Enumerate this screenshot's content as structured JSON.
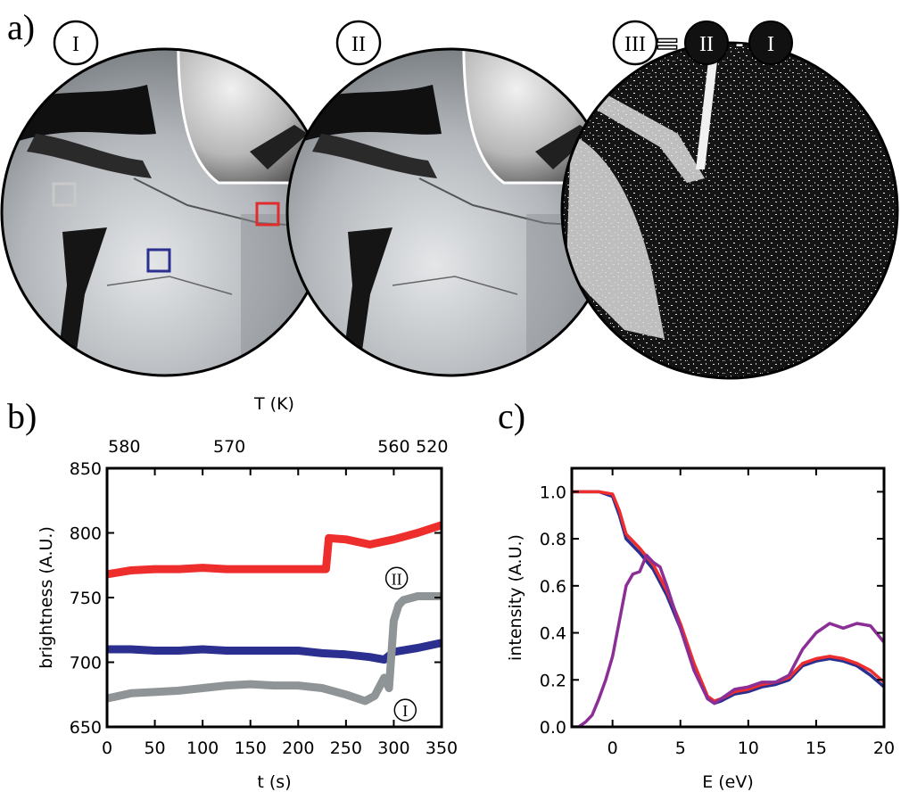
{
  "panel_labels": {
    "a": "a)",
    "b": "b)",
    "c": "c)"
  },
  "images": {
    "labels": [
      "I",
      "II",
      "III"
    ],
    "equation": {
      "lhs": "III",
      "eq": "=",
      "a": "II",
      "minus": "-",
      "b": "I"
    },
    "roi_colors": {
      "gray": "#c8c8c8",
      "blue": "#2b2f8f",
      "red": "#e02c2c"
    }
  },
  "chart_data": [
    {
      "type": "line",
      "title": "",
      "xlabel": "t (s)",
      "ylabel": "brightness (A.U.)",
      "top_xlabel": "T (K)",
      "xlim": [
        0,
        350
      ],
      "ylim": [
        650,
        850
      ],
      "xticks": [
        0,
        50,
        100,
        150,
        200,
        250,
        300,
        350
      ],
      "yticks": [
        650,
        700,
        750,
        800,
        850
      ],
      "top_ticks": [
        {
          "label": "580",
          "at_t": 18
        },
        {
          "label": "570",
          "at_t": 128
        },
        {
          "label": "560",
          "at_t": 300
        },
        {
          "label": "520",
          "at_t": 340
        }
      ],
      "annotations": [
        {
          "text": "II",
          "x": 303,
          "y": 765
        },
        {
          "text": "I",
          "x": 312,
          "y": 663
        }
      ],
      "series": [
        {
          "color": "#ee2d2d",
          "x": [
            0,
            25,
            50,
            75,
            100,
            125,
            150,
            175,
            200,
            225,
            229,
            232,
            250,
            275,
            300,
            325,
            350
          ],
          "y": [
            768,
            771,
            772,
            772,
            773,
            772,
            772,
            772,
            772,
            772,
            772,
            796,
            795,
            791,
            795,
            800,
            806
          ]
        },
        {
          "color": "#2b2f8f",
          "x": [
            0,
            25,
            50,
            75,
            100,
            125,
            150,
            175,
            200,
            225,
            250,
            275,
            290,
            300,
            325,
            350
          ],
          "y": [
            710,
            710,
            709,
            709,
            710,
            709,
            709,
            709,
            709,
            707,
            706,
            704,
            702,
            708,
            711,
            715
          ]
        },
        {
          "color": "#8f9497",
          "x": [
            0,
            25,
            50,
            75,
            100,
            125,
            150,
            175,
            200,
            225,
            250,
            270,
            280,
            290,
            295,
            300,
            305,
            310,
            325,
            350
          ],
          "y": [
            672,
            676,
            677,
            678,
            680,
            682,
            683,
            682,
            682,
            680,
            675,
            670,
            674,
            688,
            680,
            732,
            744,
            748,
            751,
            751
          ]
        }
      ]
    },
    {
      "type": "line",
      "title": "",
      "xlabel": "E (eV)",
      "ylabel": "intensity (A.U.)",
      "xlim": [
        -3,
        20
      ],
      "ylim": [
        0,
        1.1
      ],
      "xticks": [
        0,
        5,
        10,
        15,
        20
      ],
      "yticks": [
        0.0,
        0.2,
        0.4,
        0.6,
        0.8,
        1.0
      ],
      "series": [
        {
          "color": "#2b2f8f",
          "x": [
            -3,
            -1,
            0,
            0.5,
            1,
            2,
            3,
            4,
            5,
            6,
            7,
            7.5,
            8,
            9,
            10,
            11,
            12,
            13,
            14,
            15,
            16,
            17,
            18,
            19,
            20
          ],
          "y": [
            1.0,
            1.0,
            0.98,
            0.9,
            0.8,
            0.74,
            0.67,
            0.56,
            0.42,
            0.25,
            0.12,
            0.1,
            0.11,
            0.14,
            0.15,
            0.17,
            0.18,
            0.2,
            0.26,
            0.28,
            0.29,
            0.28,
            0.26,
            0.22,
            0.17
          ]
        },
        {
          "color": "#ee2d2d",
          "x": [
            -3,
            -1,
            0,
            0.5,
            1,
            2,
            3,
            4,
            5,
            6,
            7,
            7.5,
            8,
            9,
            10,
            11,
            12,
            13,
            14,
            15,
            16,
            17,
            18,
            19,
            20
          ],
          "y": [
            1.0,
            1.0,
            0.99,
            0.92,
            0.82,
            0.76,
            0.69,
            0.58,
            0.44,
            0.27,
            0.13,
            0.11,
            0.12,
            0.15,
            0.16,
            0.18,
            0.19,
            0.21,
            0.27,
            0.29,
            0.3,
            0.29,
            0.27,
            0.24,
            0.19
          ]
        },
        {
          "color": "#8b2f97",
          "x": [
            -3,
            -2.5,
            -2,
            -1.5,
            -1,
            -0.5,
            0,
            0.5,
            1,
            1.5,
            2,
            2.5,
            3,
            3.5,
            4,
            5,
            6,
            7,
            7.5,
            8,
            9,
            10,
            11,
            12,
            13,
            14,
            15,
            16,
            17,
            18,
            19,
            20
          ],
          "y": [
            0.0,
            0.0,
            0.02,
            0.05,
            0.12,
            0.2,
            0.3,
            0.45,
            0.6,
            0.65,
            0.66,
            0.73,
            0.7,
            0.68,
            0.6,
            0.42,
            0.24,
            0.12,
            0.1,
            0.12,
            0.16,
            0.17,
            0.19,
            0.19,
            0.22,
            0.33,
            0.4,
            0.44,
            0.42,
            0.44,
            0.43,
            0.36
          ]
        }
      ]
    }
  ]
}
